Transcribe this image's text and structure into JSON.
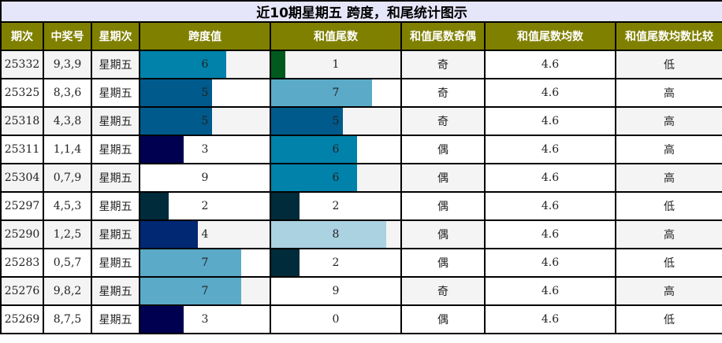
{
  "title": "近10期星期五 跨度，和尾统计图示",
  "headers": [
    "期次",
    "中奖号",
    "星期次",
    "跨度值",
    "和值尾数",
    "和值尾数奇偶",
    "和值尾数均数",
    "和值尾数均数比较"
  ],
  "colors": {
    "title_bg": "#e6e6fa",
    "header_bg": "#808000",
    "odd_row_bg": "#f4f4f4",
    "value_colors": {
      "0": "#ffffff",
      "1": "#005a1e",
      "2": "#002b3a",
      "3": "#000050",
      "4": "#002873",
      "5": "#005a8c",
      "6": "#0082aa",
      "7": "#5aaac8",
      "8": "#aad2e1",
      "9": "#ffffff"
    }
  },
  "rows": [
    {
      "issue": "25332",
      "numbers": "9,3,9",
      "weekday": "星期五",
      "span": "6",
      "sum_tail": "1",
      "parity": "奇",
      "avg": "4.6",
      "compare": "低"
    },
    {
      "issue": "25325",
      "numbers": "8,3,6",
      "weekday": "星期五",
      "span": "5",
      "sum_tail": "7",
      "parity": "奇",
      "avg": "4.6",
      "compare": "高"
    },
    {
      "issue": "25318",
      "numbers": "4,3,8",
      "weekday": "星期五",
      "span": "5",
      "sum_tail": "5",
      "parity": "奇",
      "avg": "4.6",
      "compare": "高"
    },
    {
      "issue": "25311",
      "numbers": "1,1,4",
      "weekday": "星期五",
      "span": "3",
      "sum_tail": "6",
      "parity": "偶",
      "avg": "4.6",
      "compare": "高"
    },
    {
      "issue": "25304",
      "numbers": "0,7,9",
      "weekday": "星期五",
      "span": "9",
      "sum_tail": "6",
      "parity": "偶",
      "avg": "4.6",
      "compare": "高"
    },
    {
      "issue": "25297",
      "numbers": "4,5,3",
      "weekday": "星期五",
      "span": "2",
      "sum_tail": "2",
      "parity": "偶",
      "avg": "4.6",
      "compare": "低"
    },
    {
      "issue": "25290",
      "numbers": "1,2,5",
      "weekday": "星期五",
      "span": "4",
      "sum_tail": "8",
      "parity": "偶",
      "avg": "4.6",
      "compare": "高"
    },
    {
      "issue": "25283",
      "numbers": "0,5,7",
      "weekday": "星期五",
      "span": "7",
      "sum_tail": "2",
      "parity": "偶",
      "avg": "4.6",
      "compare": "低"
    },
    {
      "issue": "25276",
      "numbers": "9,8,2",
      "weekday": "星期五",
      "span": "7",
      "sum_tail": "9",
      "parity": "奇",
      "avg": "4.6",
      "compare": "高"
    },
    {
      "issue": "25269",
      "numbers": "8,7,5",
      "weekday": "星期五",
      "span": "3",
      "sum_tail": "0",
      "parity": "偶",
      "avg": "4.6",
      "compare": "低"
    }
  ],
  "bar_max": 9
}
